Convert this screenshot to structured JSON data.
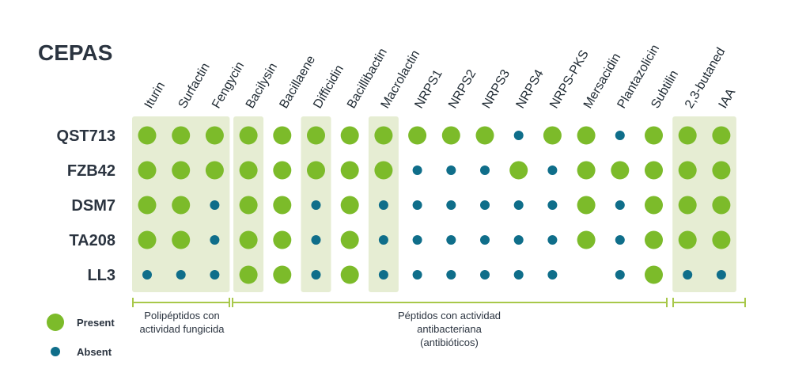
{
  "title": "CEPAS",
  "colors": {
    "present": "#7cbb2a",
    "absent": "#0f6e8a",
    "shade": "#e6edd3",
    "bracket": "#a8c84a",
    "text": "#2b3440"
  },
  "legend": {
    "present": "Present",
    "absent": "Absent"
  },
  "chart_data": {
    "type": "table",
    "columns": [
      "Iturin",
      "Surfactin",
      "Fengycin",
      "Bacilysin",
      "Bacillaene",
      "Difficidin",
      "Bacillibactin",
      "Macrolactin",
      "NRPS1",
      "NRPS2",
      "NRPS3",
      "NRPS4",
      "NRPS-PKS",
      "Mersacidin",
      "Plantazolicin",
      "Subtilin",
      "2,3-butaned",
      "IAA"
    ],
    "rows": [
      "QST713",
      "FZB42",
      "DSM7",
      "TA208",
      "LL3"
    ],
    "values": [
      [
        1,
        1,
        1,
        1,
        1,
        1,
        1,
        1,
        1,
        1,
        1,
        0,
        1,
        1,
        0,
        1,
        1,
        1
      ],
      [
        1,
        1,
        1,
        1,
        1,
        1,
        1,
        1,
        0,
        0,
        0,
        1,
        0,
        1,
        1,
        1,
        1,
        1
      ],
      [
        1,
        1,
        0,
        1,
        1,
        0,
        1,
        0,
        0,
        0,
        0,
        0,
        0,
        1,
        0,
        1,
        1,
        1
      ],
      [
        1,
        1,
        0,
        1,
        1,
        0,
        1,
        0,
        0,
        0,
        0,
        0,
        0,
        1,
        0,
        1,
        1,
        1
      ],
      [
        0,
        0,
        0,
        1,
        1,
        0,
        1,
        0,
        0,
        0,
        0,
        0,
        0,
        null,
        0,
        1,
        0,
        0
      ]
    ],
    "value_labels": {
      "1": "Present",
      "0": "Absent"
    }
  },
  "groups": [
    {
      "lines": [
        "Polipéptidos con",
        "actividad fungicida"
      ]
    },
    {
      "lines": [
        "Péptidos con actividad",
        "antibacteriana",
        "(antibióticos)"
      ]
    }
  ]
}
